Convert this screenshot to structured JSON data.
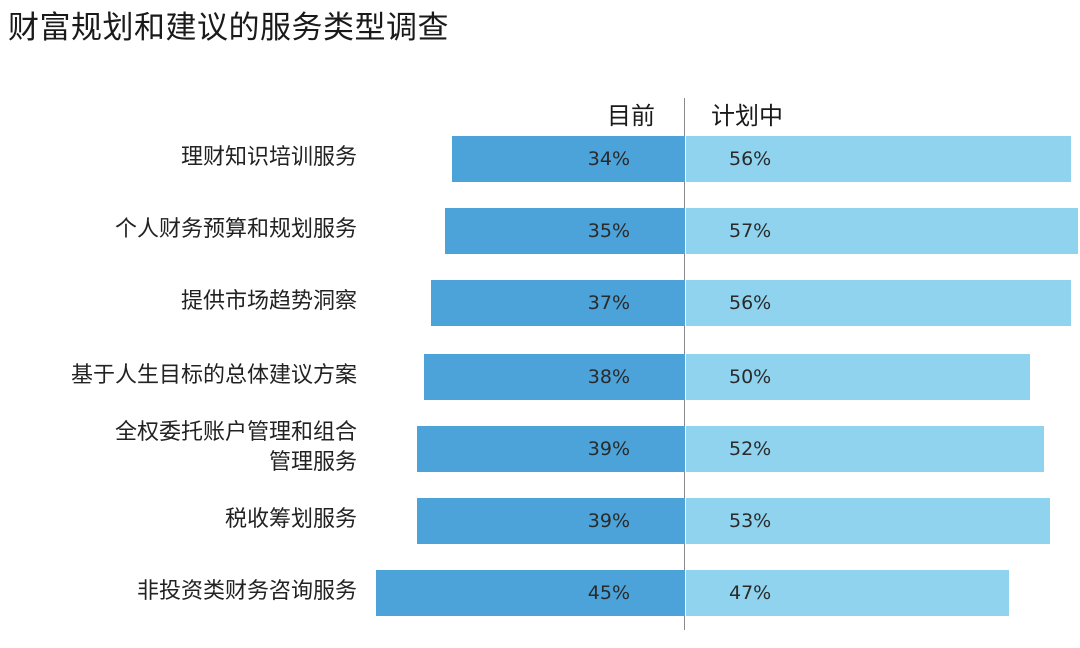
{
  "chart_data": {
    "type": "bar",
    "title": "财富规划和建议的服务类型调查",
    "categories": [
      [
        "理财知识培训服务"
      ],
      [
        "个人财务预算和规划服务"
      ],
      [
        "提供市场趋势洞察"
      ],
      [
        "基于人生目标的总体建议方案"
      ],
      [
        "全权委托账户管理和组合",
        "管理服务"
      ],
      [
        "税收筹划服务"
      ],
      [
        "非投资类财务咨询服务"
      ]
    ],
    "series": [
      {
        "name": "目前",
        "values": [
          34,
          35,
          37,
          38,
          39,
          39,
          45
        ],
        "labels": [
          "34%",
          "35%",
          "37%",
          "38%",
          "39%",
          "39%",
          "45%"
        ],
        "color": "#4ba3da"
      },
      {
        "name": "计划中",
        "values": [
          56,
          57,
          56,
          50,
          52,
          53,
          47
        ],
        "labels": [
          "56%",
          "57%",
          "56%",
          "50%",
          "52%",
          "53%",
          "47%"
        ],
        "color": "#8fd3ef"
      }
    ],
    "unit": "%",
    "layout": "diverging horizontal bars"
  }
}
